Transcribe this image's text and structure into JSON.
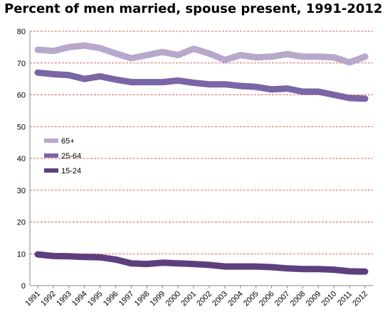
{
  "chart_data": {
    "type": "line",
    "title": "Percent of men married,  spouse present, 1991-2012",
    "xlabel": "",
    "ylabel": "",
    "ylim": [
      0,
      80
    ],
    "y_ticks": [
      0,
      10,
      20,
      30,
      40,
      50,
      60,
      70,
      80
    ],
    "grid": "horizontal dashed red",
    "legend_position": "left-center",
    "x": [
      "1991",
      "1992",
      "1993",
      "1994",
      "1995",
      "1996",
      "1997",
      "1998",
      "1999",
      "2000",
      "2001",
      "2002",
      "2003",
      "2004",
      "2005",
      "2006",
      "2007",
      "2008",
      "2009",
      "2010",
      "2011",
      "2012"
    ],
    "series": [
      {
        "name": "65+",
        "color": "#b8a8cc",
        "values": [
          74.2,
          73.8,
          75.0,
          75.5,
          74.7,
          73.0,
          71.5,
          72.5,
          73.5,
          72.5,
          74.5,
          73.0,
          71.0,
          72.5,
          71.8,
          72.0,
          72.8,
          72.0,
          72.0,
          71.8,
          70.2,
          72.0
        ]
      },
      {
        "name": "25-64",
        "color": "#7a65a5",
        "values": [
          67.0,
          66.5,
          66.2,
          65.0,
          65.8,
          64.8,
          64.0,
          64.0,
          64.0,
          64.5,
          63.8,
          63.3,
          63.3,
          62.8,
          62.5,
          61.7,
          62.0,
          61.0,
          61.0,
          60.0,
          59.0,
          58.8
        ]
      },
      {
        "name": "15-24",
        "color": "#5d3f7e",
        "values": [
          9.8,
          9.3,
          9.2,
          9.0,
          8.9,
          8.2,
          7.0,
          6.8,
          7.2,
          7.0,
          6.8,
          6.5,
          6.0,
          6.0,
          6.0,
          5.8,
          5.4,
          5.2,
          5.2,
          5.0,
          4.5,
          4.4
        ]
      }
    ]
  }
}
